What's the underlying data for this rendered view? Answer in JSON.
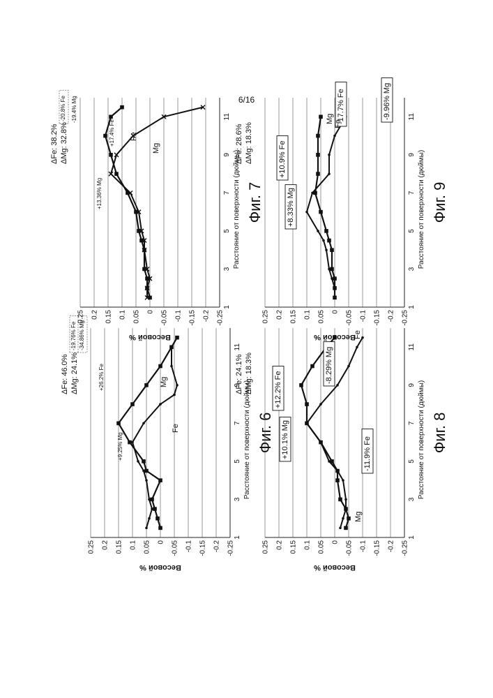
{
  "page_number": "6/16",
  "chart_data": [
    {
      "id": "fig6",
      "type": "line",
      "caption": "Фиг. 6",
      "xlabel": "Расстояние от поверхности (дюймы)",
      "ylabel": "Весовой %",
      "xlim": [
        1,
        12
      ],
      "ylim": [
        -0.25,
        0.25
      ],
      "x_ticks": [
        1,
        3,
        5,
        7,
        9,
        11
      ],
      "y_ticks": [
        "0.25",
        "0.2",
        "0.15",
        "0.1",
        "0.05",
        "0",
        "-0.05",
        "-0.1",
        "-0.15",
        "-0.2",
        "-0.25"
      ],
      "grid": true,
      "series": [
        {
          "name": "Fe",
          "marker": "square",
          "x": [
            1.5,
            2.0,
            2.5,
            3.0,
            4.0,
            4.5,
            5.0,
            6.0,
            7.0,
            8.0,
            9.0,
            10.0,
            11.0,
            11.5
          ],
          "y": [
            0.0,
            0.01,
            0.02,
            0.03,
            0.0,
            0.05,
            0.06,
            0.11,
            0.15,
            0.1,
            0.05,
            0.0,
            -0.04,
            -0.06
          ]
        },
        {
          "name": "Mg",
          "marker": "dot",
          "x": [
            1.5,
            2.0,
            2.5,
            3.0,
            4.0,
            4.5,
            5.0,
            6.0,
            7.0,
            8.0,
            8.5,
            9.0,
            10.0,
            11.0
          ],
          "y": [
            0.05,
            0.04,
            0.03,
            0.04,
            0.05,
            0.06,
            0.08,
            0.1,
            0.06,
            0.0,
            -0.05,
            -0.06,
            -0.04,
            -0.04
          ]
        }
      ],
      "annotations": [
        {
          "text": "+9.25% Mg",
          "style": "small"
        },
        {
          "text": "+26.2% Fe",
          "style": "small"
        },
        {
          "text": "-19.76% Fe",
          "style": "dashbox"
        },
        {
          "text": "-34.86% Mg",
          "style": "dashbox"
        }
      ],
      "series_labels": [
        "Fe",
        "Mg"
      ],
      "deltas": [
        "ΔFe: 46.0%",
        "ΔMg: 24.1%"
      ]
    },
    {
      "id": "fig7",
      "type": "line",
      "caption": "Фиг. 7",
      "xlabel": "Расстояние от поверхности (дюймы)",
      "ylabel": "Весовой %",
      "xlim": [
        1,
        12
      ],
      "ylim": [
        -0.25,
        0.25
      ],
      "x_ticks": [
        1,
        3,
        5,
        7,
        9,
        11
      ],
      "y_ticks": [
        "0.25",
        "0.2",
        "0.15",
        "0.1",
        "0.05",
        "0",
        "-0.05",
        "-0.1",
        "-0.15",
        "-0.2",
        "-0.25"
      ],
      "grid": true,
      "series": [
        {
          "name": "Fe",
          "marker": "square",
          "x": [
            1.5,
            2.0,
            2.5,
            3.0,
            4.0,
            4.5,
            5.0,
            6.0,
            7.0,
            8.0,
            9.0,
            10.0,
            11.0,
            11.5
          ],
          "y": [
            0.0,
            0.01,
            0.01,
            0.02,
            0.02,
            0.03,
            0.04,
            0.05,
            0.08,
            0.12,
            0.14,
            0.16,
            0.14,
            0.1
          ]
        },
        {
          "name": "Mg",
          "marker": "x",
          "x": [
            1.5,
            2.0,
            2.5,
            3.0,
            4.0,
            4.5,
            5.0,
            6.0,
            7.0,
            8.0,
            9.0,
            10.0,
            11.0,
            11.5
          ],
          "y": [
            0.01,
            0.01,
            0.0,
            0.01,
            0.02,
            0.02,
            0.03,
            0.04,
            0.07,
            0.14,
            0.12,
            0.06,
            -0.05,
            -0.19
          ]
        }
      ],
      "annotations": [
        {
          "text": "+13.36% Mg",
          "style": "small"
        },
        {
          "text": "+17.4% Fe",
          "style": "small"
        },
        {
          "text": "-20.8% Fe",
          "style": "dashbox"
        },
        {
          "text": "-19.4% Mg",
          "style": "small"
        }
      ],
      "series_labels": [
        "Mg",
        "Fe"
      ],
      "deltas": [
        "ΔFe: 38.2%",
        "ΔMg: 32.8%"
      ]
    },
    {
      "id": "fig8",
      "type": "line",
      "caption": "Фиг. 8",
      "xlabel": "Расстояние от поверхности (дюймы)",
      "ylabel": "Весовой %",
      "xlim": [
        1,
        12
      ],
      "ylim": [
        -0.25,
        0.25
      ],
      "x_ticks": [
        1,
        3,
        5,
        7,
        9,
        11
      ],
      "y_ticks": [
        "0.25",
        "0.2",
        "0.15",
        "0.1",
        "0.05",
        "0",
        "-0.05",
        "-0.1",
        "-0.15",
        "-0.2",
        "-0.25"
      ],
      "grid": true,
      "series": [
        {
          "name": "Fe",
          "marker": "square",
          "x": [
            1.5,
            2.0,
            2.5,
            3.0,
            4.0,
            4.5,
            5.0,
            6.0,
            7.0,
            8.0,
            9.0,
            10.0,
            11.0,
            11.5
          ],
          "y": [
            -0.04,
            -0.05,
            -0.04,
            -0.02,
            -0.01,
            -0.01,
            0.01,
            0.05,
            0.1,
            0.1,
            0.12,
            0.08,
            0.03,
            0.0
          ]
        },
        {
          "name": "Mg",
          "marker": "dot",
          "x": [
            1.5,
            2.0,
            2.5,
            3.0,
            4.0,
            4.5,
            5.0,
            6.0,
            7.0,
            8.0,
            9.0,
            10.0,
            11.0,
            11.5
          ],
          "y": [
            -0.02,
            -0.03,
            -0.04,
            -0.04,
            -0.03,
            -0.01,
            0.02,
            0.05,
            0.1,
            0.05,
            -0.01,
            -0.05,
            -0.08,
            -0.1
          ]
        }
      ],
      "annotations": [
        {
          "text": "+10.1% Mg",
          "style": "box"
        },
        {
          "text": "+12.2% Fe",
          "style": "box"
        },
        {
          "text": "-11.9% Fe",
          "style": "box"
        },
        {
          "text": "-8.29% Mg",
          "style": "box"
        }
      ],
      "series_labels": [
        "Mg",
        "Fe"
      ],
      "deltas": [
        "ΔFe: 24.1%",
        "ΔMg: 18.3%"
      ]
    },
    {
      "id": "fig9",
      "type": "line",
      "caption": "Фиг. 9",
      "xlabel": "Расстояние от поверхности (дюймы)",
      "ylabel": "Весовой %",
      "xlim": [
        1,
        12
      ],
      "ylim": [
        -0.25,
        0.25
      ],
      "x_ticks": [
        1,
        3,
        5,
        7,
        9,
        11
      ],
      "y_ticks": [
        "0.25",
        "0.2",
        "0.15",
        "0.1",
        "0.05",
        "0",
        "-0.05",
        "-0.1",
        "-0.15",
        "-0.2",
        "-0.25"
      ],
      "grid": true,
      "series": [
        {
          "name": "Fe",
          "marker": "square",
          "x": [
            1.5,
            2.0,
            2.5,
            3.0,
            4.0,
            4.5,
            5.0,
            6.0,
            7.0,
            8.0,
            9.0,
            10.0,
            11.0
          ],
          "y": [
            0.0,
            0.0,
            0.0,
            0.01,
            0.01,
            0.02,
            0.03,
            0.05,
            0.07,
            0.06,
            0.06,
            0.06,
            0.05
          ]
        },
        {
          "name": "Mg",
          "marker": "dot",
          "x": [
            1.5,
            2.0,
            2.5,
            3.0,
            4.0,
            4.5,
            5.0,
            6.0,
            7.0,
            8.0,
            9.0,
            10.0,
            11.0
          ],
          "y": [
            0.0,
            0.0,
            0.01,
            0.02,
            0.03,
            0.04,
            0.06,
            0.1,
            0.08,
            0.02,
            0.02,
            0.0,
            -0.04
          ]
        }
      ],
      "annotations": [
        {
          "text": "+8.33% Mg",
          "style": "box"
        },
        {
          "text": "+10.9% Fe",
          "style": "box"
        },
        {
          "text": "-17.7% Fe",
          "style": "box"
        },
        {
          "text": "-9.96% Mg",
          "style": "box"
        }
      ],
      "series_labels": [
        "Fe",
        "Mg"
      ],
      "deltas": [
        "ΔFe: 28.6%",
        "ΔMg: 18.3%"
      ]
    }
  ]
}
